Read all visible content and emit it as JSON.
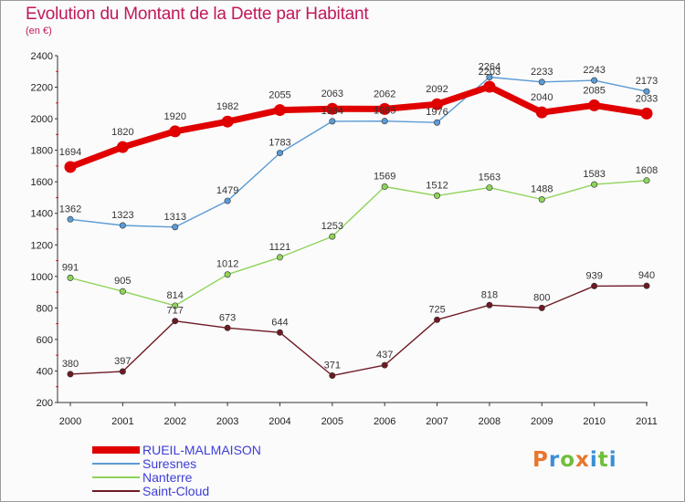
{
  "title": "Evolution du Montant de la Dette par Habitant",
  "subtitle": "(en €)",
  "logo": {
    "text": "Proxiti",
    "colors": [
      "#e8762d",
      "#3a8fd6",
      "#6fbf3a",
      "#e8762d",
      "#3a8fd6",
      "#6fbf3a",
      "#3a8fd6"
    ]
  },
  "chart_data": {
    "type": "line",
    "x": [
      "2000",
      "2001",
      "2002",
      "2003",
      "2004",
      "2005",
      "2006",
      "2007",
      "2008",
      "2009",
      "2010",
      "2011"
    ],
    "ylim": [
      200,
      2400
    ],
    "yticks": [
      200,
      400,
      600,
      800,
      1000,
      1200,
      1400,
      1600,
      1800,
      2000,
      2200,
      2400
    ],
    "grid": false,
    "legend_position": "bottom-left",
    "series": [
      {
        "name": "RUEIL-MALMAISON",
        "color": "#e00000",
        "values": [
          1694,
          1820,
          1920,
          1982,
          2055,
          2063,
          2062,
          2092,
          2203,
          2040,
          2085,
          2033
        ]
      },
      {
        "name": "Suresnes",
        "color": "#5b9bd5",
        "values": [
          1362,
          1323,
          1313,
          1479,
          1783,
          1984,
          1985,
          1976,
          2264,
          2233,
          2243,
          2173
        ]
      },
      {
        "name": "Nanterre",
        "color": "#8fd35a",
        "values": [
          991,
          905,
          814,
          1012,
          1121,
          1253,
          1569,
          1512,
          1563,
          1488,
          1583,
          1608
        ]
      },
      {
        "name": "Saint-Cloud",
        "color": "#6e1a24",
        "values": [
          380,
          397,
          717,
          673,
          644,
          371,
          437,
          725,
          818,
          800,
          939,
          940
        ]
      }
    ]
  }
}
